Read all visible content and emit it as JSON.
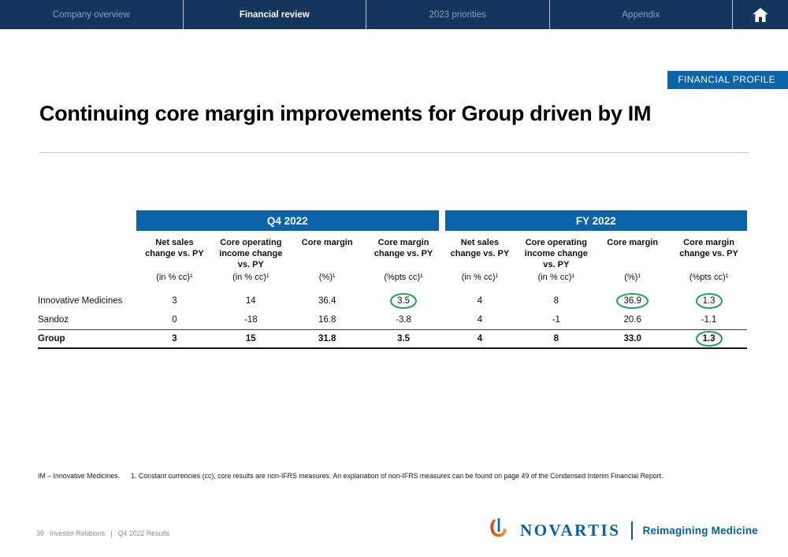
{
  "nav": {
    "tabs": [
      {
        "label": "Company overview",
        "active": false
      },
      {
        "label": "Financial review",
        "active": true
      },
      {
        "label": "2023 priorities",
        "active": false
      },
      {
        "label": "Appendix",
        "active": false
      }
    ],
    "home_icon": "home-icon"
  },
  "badge": "FINANCIAL PROFILE",
  "title": "Continuing core margin improvements for Group driven by IM",
  "table": {
    "group_headers": [
      "Q4 2022",
      "FY 2022"
    ],
    "columns": [
      {
        "header": "Net sales change vs. PY",
        "unit": "(in % cc)¹"
      },
      {
        "header": "Core operating income change vs. PY",
        "unit": "(in % cc)¹"
      },
      {
        "header": "Core margin",
        "unit": "(%)¹"
      },
      {
        "header": "Core margin change vs. PY",
        "unit": "(%pts cc)¹"
      },
      {
        "header": "Net sales change vs. PY",
        "unit": "(in % cc)¹"
      },
      {
        "header": "Core operating income change vs. PY",
        "unit": "(in % cc)¹"
      },
      {
        "header": "Core margin",
        "unit": "(%)¹"
      },
      {
        "header": "Core margin change vs. PY",
        "unit": "(%pts cc)¹"
      }
    ],
    "rows": [
      {
        "label": "Innovative Medicines",
        "bold": false,
        "values": [
          "3",
          "14",
          "36.4",
          "3.5",
          "4",
          "8",
          "36.9",
          "1.3"
        ],
        "circled": [
          3,
          6,
          7
        ]
      },
      {
        "label": "Sandoz",
        "bold": false,
        "values": [
          "0",
          "-18",
          "16.8",
          "-3.8",
          "4",
          "-1",
          "20.6",
          "-1.1"
        ],
        "circled": []
      },
      {
        "label": "Group",
        "bold": true,
        "values": [
          "3",
          "15",
          "31.8",
          "3.5",
          "4",
          "8",
          "33.0",
          "1.3"
        ],
        "circled": [
          7
        ]
      }
    ]
  },
  "footnote": {
    "abbrev": "IM – Innovative Medicines.",
    "note": "1. Constant currencies (cc), core results are non-IFRS measures. An explanation of non-IFRS measures can be found on page 49 of the Condensed Interim Financial Report."
  },
  "footer": {
    "page_number": "39",
    "section": "Investor Relations",
    "separator": "|",
    "deck": "Q4 2022 Results",
    "brand_name": "NOVARTIS",
    "tagline": "Reimagining Medicine"
  },
  "colors": {
    "nav_bg": "#15365c",
    "accent_blue": "#0b63a9",
    "highlight_green": "#1aa64f",
    "brand_blue": "#0460a9"
  }
}
